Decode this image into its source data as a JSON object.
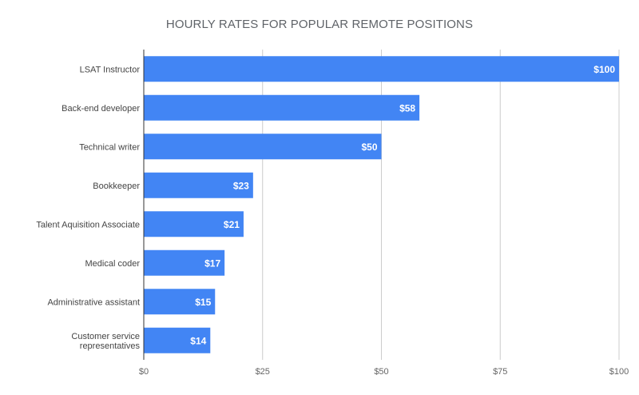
{
  "colors": {
    "bar": "#4285f4",
    "gridline": "#cccccc",
    "axis_line": "#333333"
  },
  "chart_data": {
    "type": "bar",
    "orientation": "horizontal",
    "title": "HOURLY RATES FOR POPULAR REMOTE POSITIONS",
    "xlabel": "",
    "ylabel": "",
    "categories": [
      "LSAT Instructor",
      "Back-end developer",
      "Technical writer",
      "Bookkeeper",
      "Talent Aquisition Associate",
      "Medical coder",
      "Administrative assistant",
      "Customer service representatives"
    ],
    "category_lines": [
      [
        "LSAT Instructor"
      ],
      [
        "Back-end developer"
      ],
      [
        "Technical writer"
      ],
      [
        "Bookkeeper"
      ],
      [
        "Talent Aquisition Associate"
      ],
      [
        "Medical coder"
      ],
      [
        "Administrative assistant"
      ],
      [
        "Customer service",
        "representatives"
      ]
    ],
    "values": [
      100,
      58,
      50,
      23,
      21,
      17,
      15,
      14
    ],
    "data_labels": [
      "$100",
      "$58",
      "$50",
      "$23",
      "$21",
      "$17",
      "$15",
      "$14"
    ],
    "xlim": [
      0,
      100
    ],
    "x_ticks": [
      0,
      25,
      50,
      75,
      100
    ],
    "x_tick_labels": [
      "$0",
      "$25",
      "$50",
      "$75",
      "$100"
    ],
    "grid": true,
    "legend": "none"
  }
}
